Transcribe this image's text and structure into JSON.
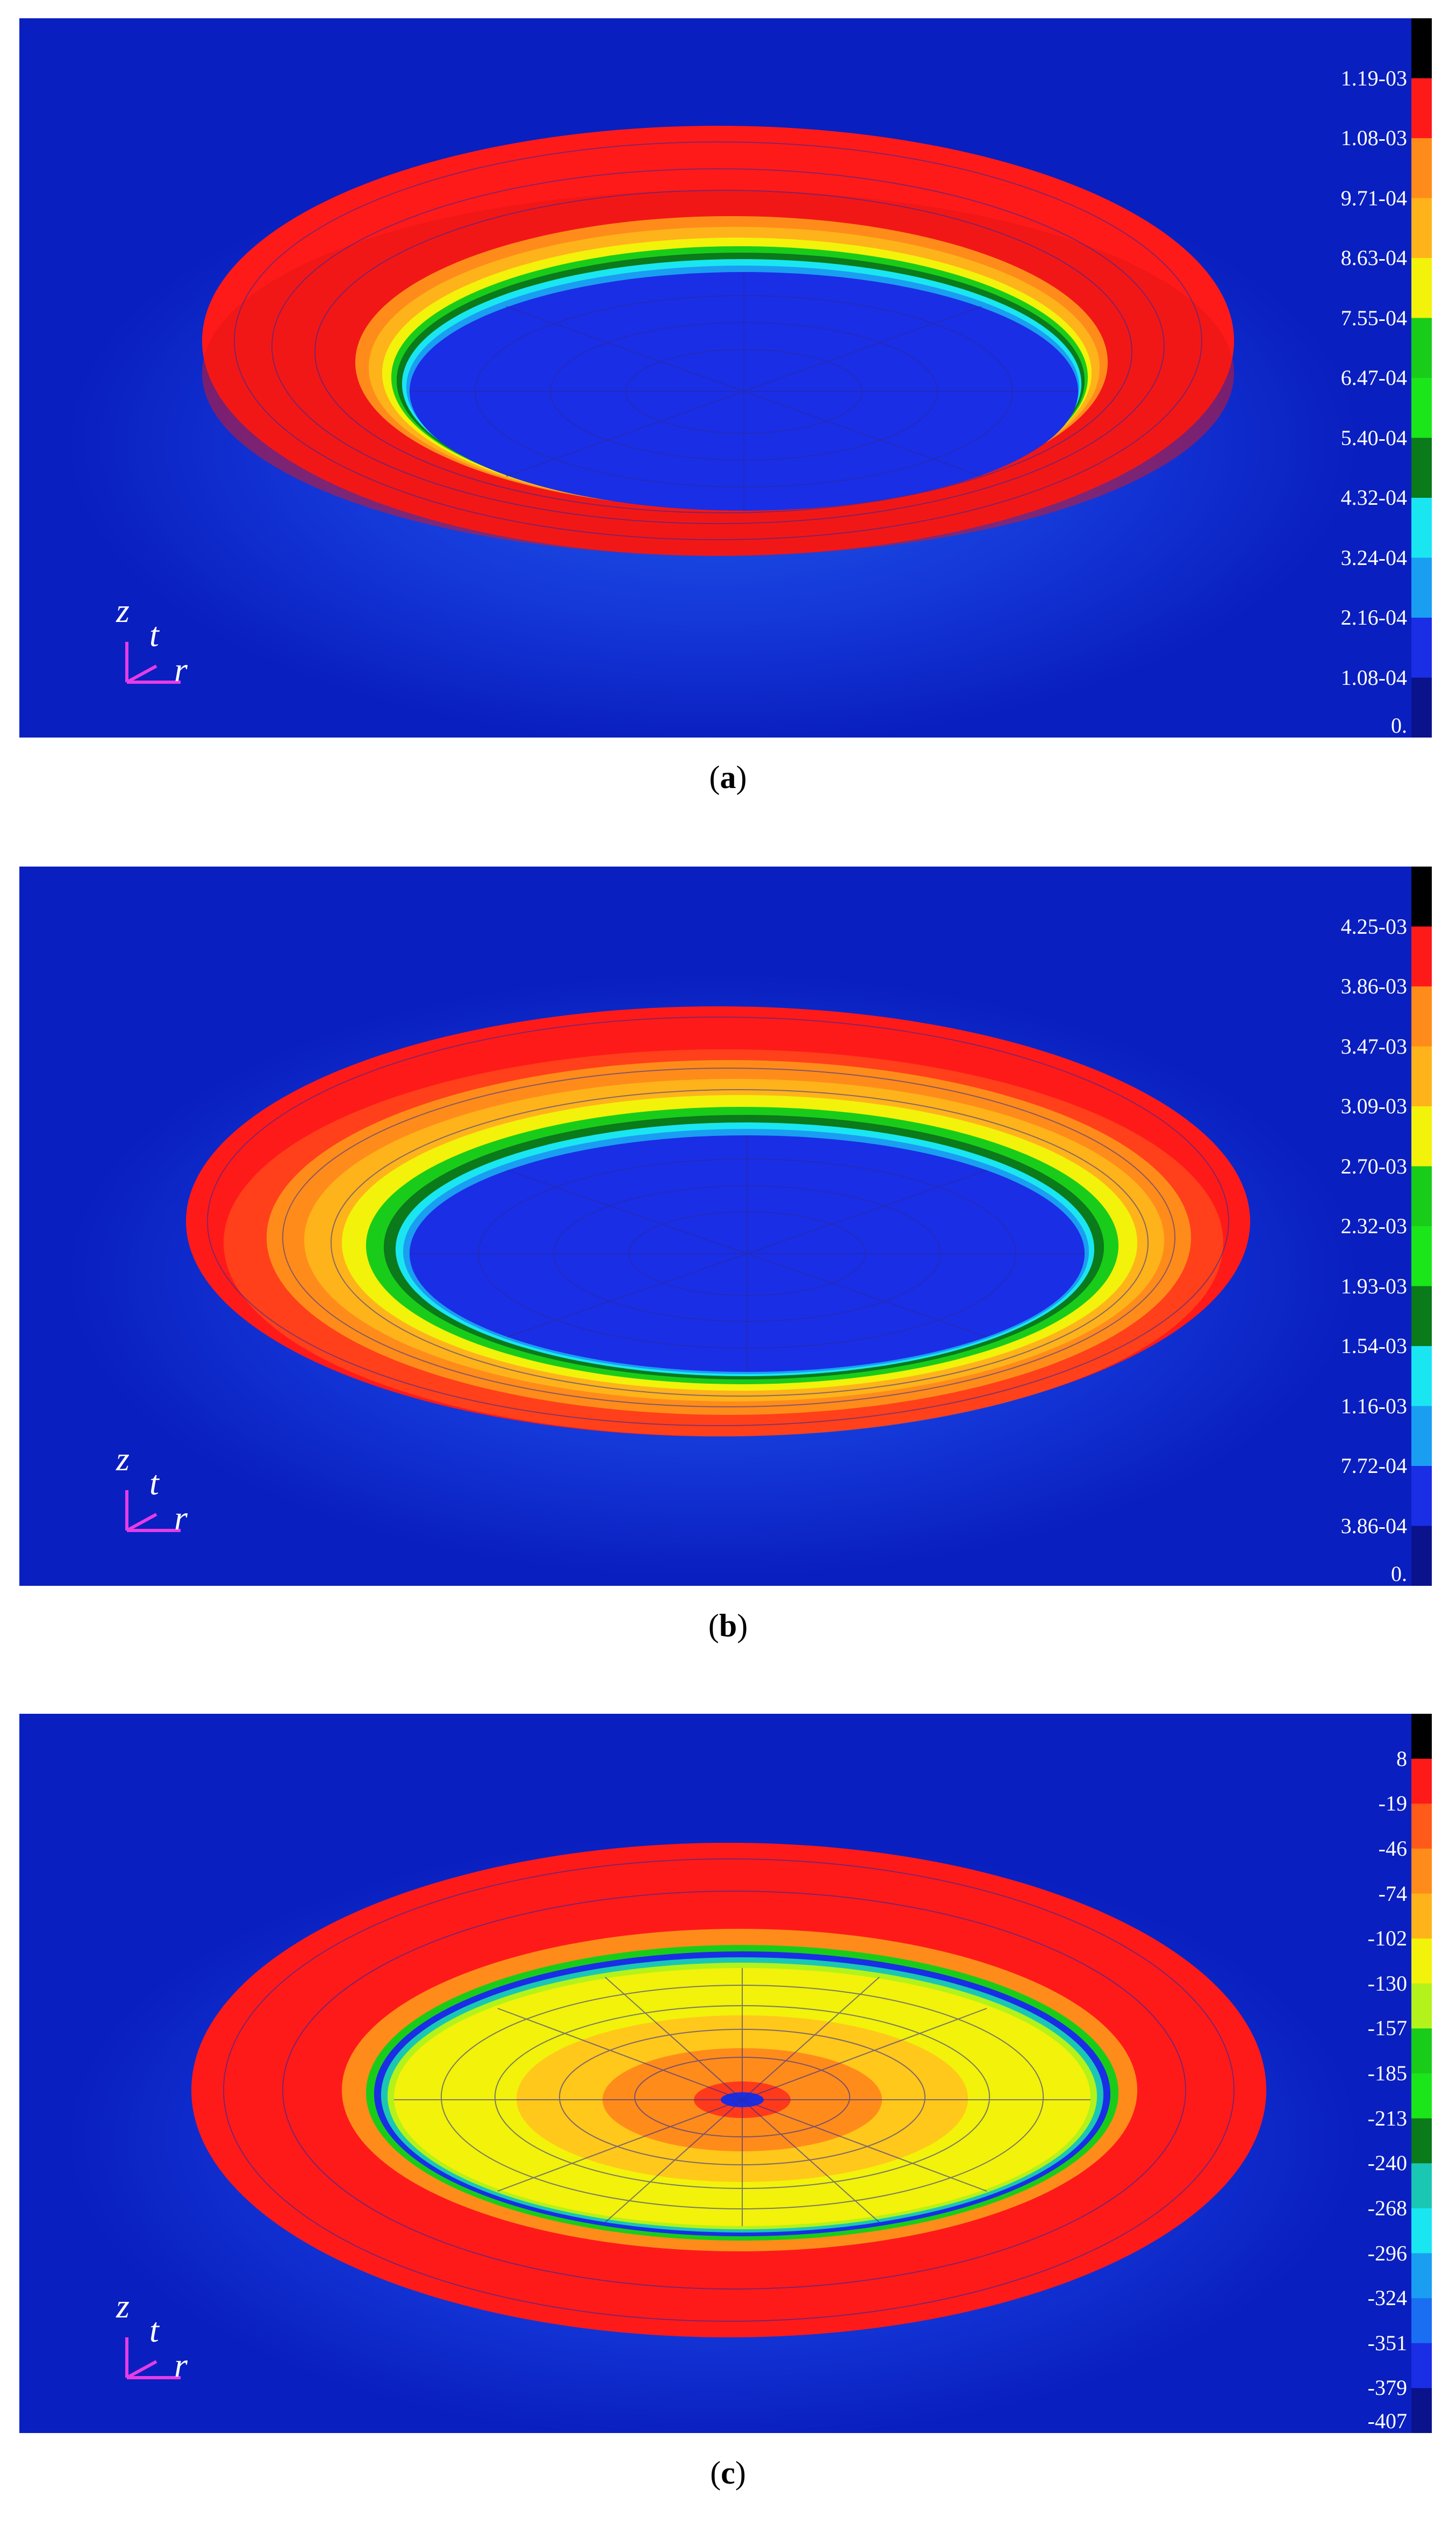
{
  "panels": [
    {
      "id": "a",
      "caption_letter": "a",
      "legend": [
        "1.19-03",
        "1.08-03",
        "9.71-04",
        "8.63-04",
        "7.55-04",
        "6.47-04",
        "5.40-04",
        "4.32-04",
        "3.24-04",
        "2.16-04",
        "1.08-04",
        "0."
      ],
      "axis_labels": {
        "z": "z",
        "t": "t",
        "r": "r"
      }
    },
    {
      "id": "b",
      "caption_letter": "b",
      "legend": [
        "4.25-03",
        "3.86-03",
        "3.47-03",
        "3.09-03",
        "2.70-03",
        "2.32-03",
        "1.93-03",
        "1.54-03",
        "1.16-03",
        "7.72-04",
        "3.86-04",
        "0."
      ],
      "axis_labels": {
        "z": "z",
        "t": "t",
        "r": "r"
      }
    },
    {
      "id": "c",
      "caption_letter": "c",
      "legend": [
        "8",
        "-19",
        "-46",
        "-74",
        "-102",
        "-130",
        "-157",
        "-185",
        "-213",
        "-240",
        "-268",
        "-296",
        "-324",
        "-351",
        "-379",
        "-407"
      ],
      "axis_labels": {
        "z": "z",
        "t": "t",
        "r": "r"
      }
    }
  ],
  "colors": {
    "background": "#0a1fbf",
    "red": "#ff1a1a",
    "orange": "#ff8c1a",
    "yellow": "#f2f20a",
    "green": "#1acc1a",
    "dark_green": "#0a7a1a",
    "cyan": "#1ae6f2",
    "light_blue": "#1a9ef2",
    "blue": "#1a2ee6",
    "navy": "#0a128c",
    "axis": "#e63ce6"
  },
  "colormaps": {
    "a_b": [
      "#000000",
      "#ff1a1a",
      "#ff8c1a",
      "#ffb31a",
      "#f2f20a",
      "#1acc1a",
      "#1ae61a",
      "#0a7a1a",
      "#1ae6f2",
      "#1a9ef2",
      "#1a2ee6",
      "#0a128c"
    ],
    "c": [
      "#000000",
      "#ff1a1a",
      "#ff5a1a",
      "#ff8c1a",
      "#ffb31a",
      "#f2f20a",
      "#b3f21a",
      "#1acc1a",
      "#1ae61a",
      "#0a7a1a",
      "#1ac7b3",
      "#1ae6f2",
      "#1a9ef2",
      "#1a6ef2",
      "#1a2ee6",
      "#0a128c"
    ]
  }
}
